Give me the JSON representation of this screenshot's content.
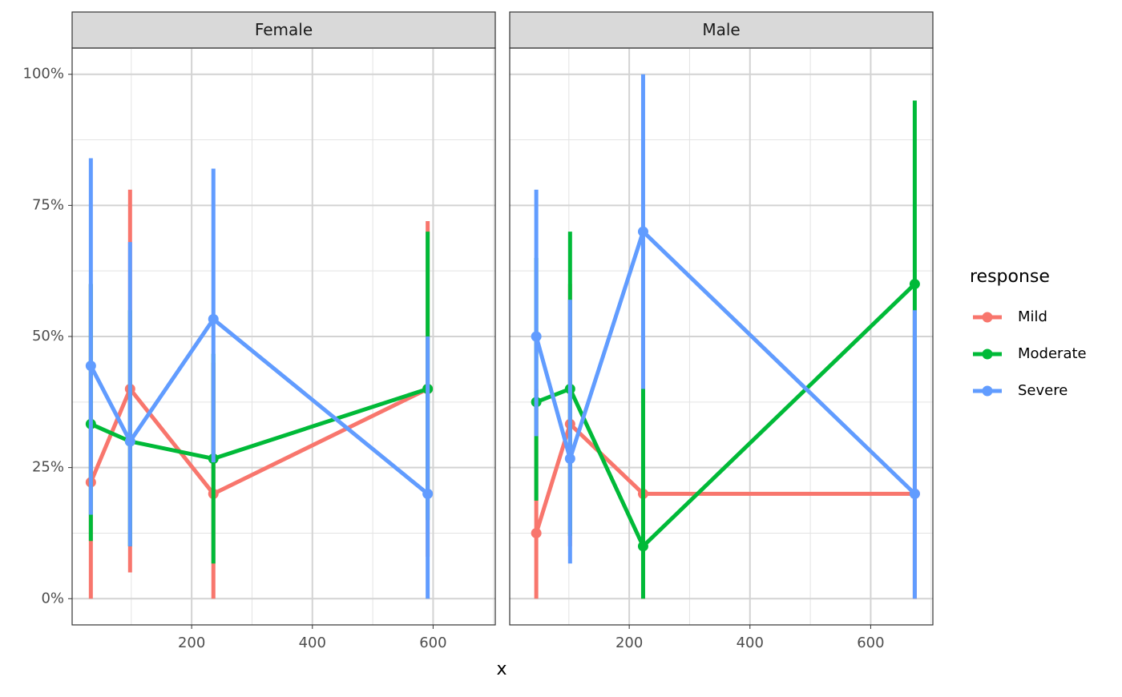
{
  "chart_data": [
    {
      "type": "line",
      "title": "Female",
      "xlabel": "x",
      "legend_title": "response",
      "xlim": [
        2,
        703
      ],
      "xticks": [
        200,
        400,
        600
      ],
      "ylim": [
        -5,
        105
      ],
      "yticks": [
        {
          "value": 0,
          "label": "0%"
        },
        {
          "value": 25,
          "label": "25%"
        },
        {
          "value": 50,
          "label": "50%"
        },
        {
          "value": 75,
          "label": "75%"
        },
        {
          "value": 100,
          "label": "100%"
        }
      ],
      "x": [
        33,
        98,
        236,
        591
      ],
      "grid": true,
      "series": [
        {
          "name": "Mild",
          "color": "#F8766D",
          "values": [
            22.2,
            40,
            20,
            40
          ],
          "lower": [
            0,
            5,
            0,
            8
          ],
          "upper": [
            60,
            78,
            45,
            72
          ]
        },
        {
          "name": "Moderate",
          "color": "#00BA38",
          "values": [
            33.3,
            30,
            26.7,
            40
          ],
          "lower": [
            11,
            10,
            6.7,
            15
          ],
          "upper": [
            60,
            55,
            46.7,
            70
          ]
        },
        {
          "name": "Severe",
          "color": "#619CFF",
          "values": [
            44.4,
            30,
            53.3,
            20
          ],
          "lower": [
            16,
            10,
            26,
            0
          ],
          "upper": [
            84,
            68,
            82,
            50
          ]
        }
      ]
    },
    {
      "type": "line",
      "title": "Male",
      "xlim": [
        2,
        703
      ],
      "xticks": [
        200,
        400,
        600
      ],
      "ylim": [
        -5,
        105
      ],
      "x": [
        46,
        102,
        223,
        673
      ],
      "grid": true,
      "series": [
        {
          "color": "#F8766D",
          "values": [
            12.5,
            33.3,
            20,
            20
          ],
          "lower": [
            0,
            10,
            0,
            0
          ],
          "upper": [
            40,
            60,
            50,
            55
          ]
        },
        {
          "color": "#00BA38",
          "values": [
            37.5,
            40,
            10,
            60
          ],
          "lower": [
            18.7,
            12,
            0,
            25
          ],
          "upper": [
            65,
            70,
            40,
            95
          ]
        },
        {
          "color": "#619CFF",
          "values": [
            50,
            26.7,
            70,
            20
          ],
          "lower": [
            31,
            6.7,
            40,
            0
          ],
          "upper": [
            78,
            57,
            100,
            55
          ]
        }
      ]
    }
  ]
}
